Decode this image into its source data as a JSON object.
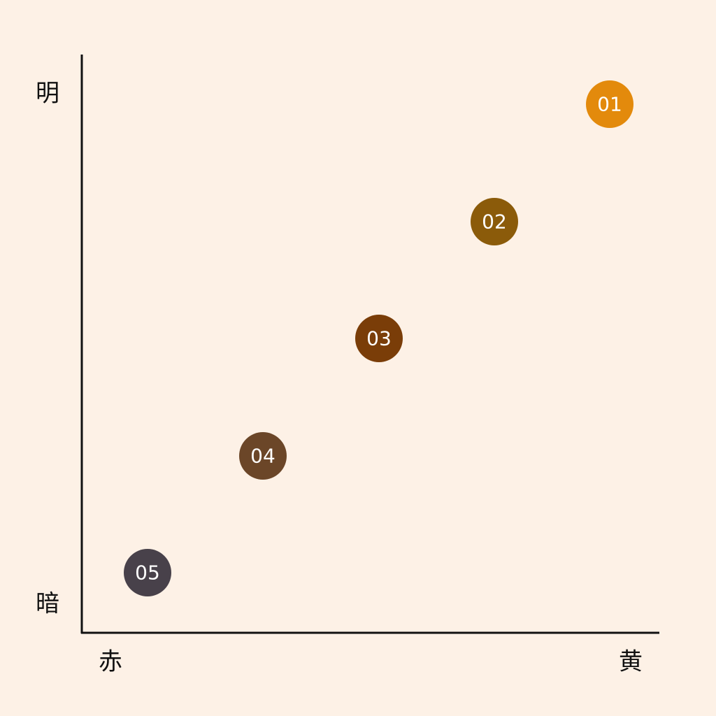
{
  "axes": {
    "y_top": "明",
    "y_bottom": "暗",
    "x_left": "赤",
    "x_right": "黄"
  },
  "nodes": [
    {
      "label": "01",
      "color": "#e38a0c"
    },
    {
      "label": "02",
      "color": "#8b5b0a"
    },
    {
      "label": "03",
      "color": "#7a3d08"
    },
    {
      "label": "04",
      "color": "#6b4628"
    },
    {
      "label": "05",
      "color": "#48414a"
    }
  ]
}
